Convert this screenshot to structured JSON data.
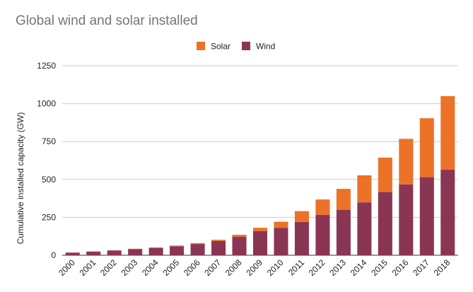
{
  "chart_data": {
    "type": "bar",
    "stacked": true,
    "title": "Global wind and solar installed",
    "ylabel": "Cumulative installed capacity (GW)",
    "xlabel": "",
    "ylim": [
      0,
      1250
    ],
    "yticks": [
      0,
      250,
      500,
      750,
      1000,
      1250
    ],
    "grid": true,
    "legend": "top-center",
    "categories": [
      "2000",
      "2001",
      "2002",
      "2003",
      "2004",
      "2005",
      "2006",
      "2007",
      "2008",
      "2009",
      "2010",
      "2011",
      "2012",
      "2013",
      "2014",
      "2015",
      "2016",
      "2017",
      "2018"
    ],
    "series": [
      {
        "name": "Wind",
        "color": "#8b3554",
        "values": [
          17,
          24,
          31,
          40,
          48,
          59,
          74,
          94,
          121,
          159,
          181,
          220,
          267,
          300,
          349,
          417,
          467,
          515,
          564
        ]
      },
      {
        "name": "Solar",
        "color": "#ec7228",
        "values": [
          1,
          1,
          2,
          3,
          4,
          5,
          6,
          8,
          14,
          22,
          40,
          71,
          101,
          138,
          178,
          227,
          301,
          389,
          486
        ]
      }
    ],
    "legend_order": [
      "Solar",
      "Wind"
    ]
  }
}
